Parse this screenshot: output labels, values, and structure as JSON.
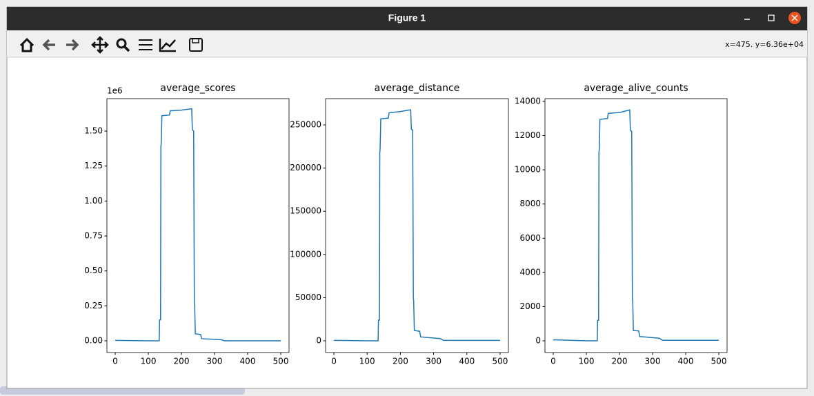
{
  "window": {
    "title": "Figure 1",
    "status": "x=475. y=6.36e+04"
  },
  "chart_data": [
    {
      "type": "line",
      "title": "average_scores",
      "y_offset_label": "1e6",
      "color": "#1f77b4",
      "x": [
        0,
        100,
        133,
        134,
        137,
        138,
        139,
        141,
        164,
        166,
        200,
        231,
        233,
        237,
        239,
        240,
        242,
        258,
        261,
        320,
        330,
        500
      ],
      "values": [
        0.003,
        0.0,
        0.0,
        0.15,
        0.15,
        1.39,
        1.41,
        1.61,
        1.615,
        1.645,
        1.65,
        1.66,
        1.51,
        1.5,
        0.27,
        0.25,
        0.05,
        0.045,
        0.015,
        0.008,
        0.0,
        0.0
      ],
      "xlim": [
        -25,
        525
      ],
      "xticks": [
        0,
        100,
        200,
        300,
        400,
        500
      ],
      "ylim": [
        -0.084,
        1.732
      ],
      "yticks": [
        {
          "value": 0,
          "label": "0.00"
        },
        {
          "value": 0.25,
          "label": "0.25"
        },
        {
          "value": 0.5,
          "label": "0.50"
        },
        {
          "value": 0.75,
          "label": "0.75"
        },
        {
          "value": 1,
          "label": "1.00"
        },
        {
          "value": 1.25,
          "label": "1.25"
        },
        {
          "value": 1.5,
          "label": "1.50"
        }
      ]
    },
    {
      "type": "line",
      "title": "average_distance",
      "color": "#1f77b4",
      "x": [
        0,
        100,
        133,
        134,
        137,
        138,
        139,
        141,
        164,
        166,
        200,
        231,
        233,
        237,
        239,
        240,
        242,
        258,
        261,
        320,
        330,
        500
      ],
      "values": [
        500,
        0,
        0,
        24000,
        24000,
        218000,
        222000,
        257000,
        258000,
        264000,
        265500,
        267500,
        245000,
        244000,
        50000,
        46000,
        12000,
        11000,
        4500,
        2500,
        500,
        500
      ],
      "xlim": [
        -25,
        525
      ],
      "xticks": [
        0,
        100,
        200,
        300,
        400,
        500
      ],
      "ylim": [
        -13600,
        280400
      ],
      "yticks": [
        0,
        50000,
        100000,
        150000,
        200000,
        250000
      ]
    },
    {
      "type": "line",
      "title": "average_alive_counts",
      "color": "#1f77b4",
      "x": [
        0,
        100,
        133,
        134,
        137,
        138,
        139,
        141,
        164,
        166,
        200,
        231,
        233,
        237,
        239,
        240,
        242,
        258,
        261,
        320,
        330,
        500
      ],
      "values": [
        60,
        0,
        0,
        1200,
        1200,
        11000,
        11200,
        12950,
        13000,
        13300,
        13350,
        13500,
        12300,
        12250,
        2500,
        2400,
        600,
        580,
        250,
        150,
        30,
        30
      ],
      "xlim": [
        -25,
        525
      ],
      "xticks": [
        0,
        100,
        200,
        300,
        400,
        500
      ],
      "ylim": [
        -686,
        14161
      ],
      "yticks": [
        0,
        2000,
        4000,
        6000,
        8000,
        10000,
        12000,
        14000
      ]
    }
  ]
}
